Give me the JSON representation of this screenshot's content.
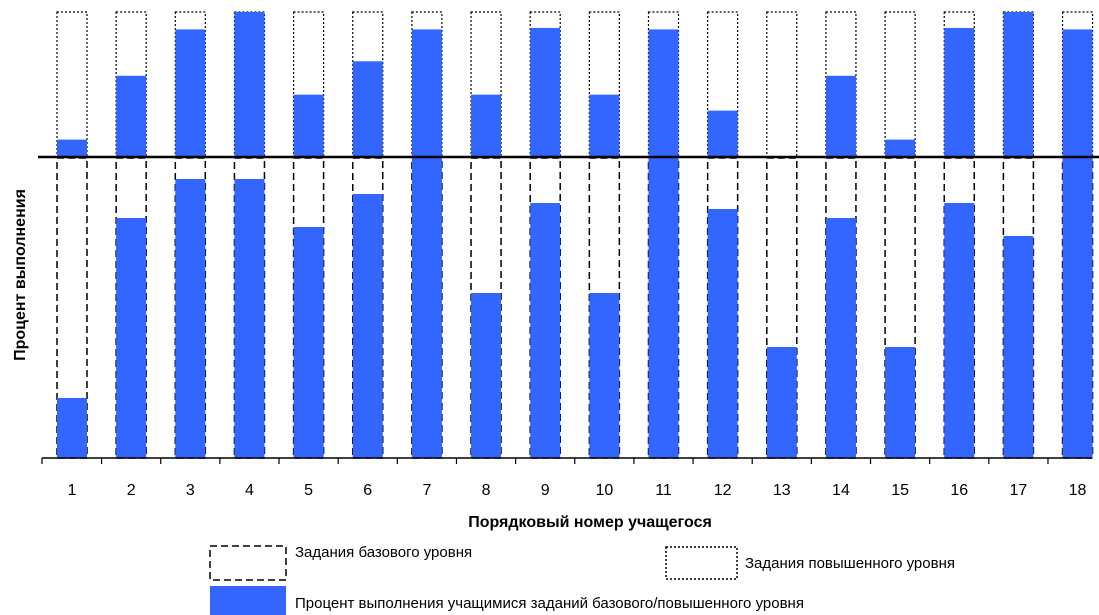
{
  "chart_data": {
    "type": "bar",
    "xlabel": "Порядковый номер учащегося",
    "ylabel": "Процент выполнения",
    "categories": [
      "1",
      "2",
      "3",
      "4",
      "5",
      "6",
      "7",
      "8",
      "9",
      "10",
      "11",
      "12",
      "13",
      "14",
      "15",
      "16",
      "17",
      "18"
    ],
    "ylim": [
      0,
      100
    ],
    "series": [
      {
        "name": "Задания базового уровня",
        "values": [
          20,
          80,
          93,
          93,
          77,
          88,
          100,
          55,
          85,
          55,
          100,
          83,
          37,
          80,
          37,
          85,
          74,
          100
        ]
      },
      {
        "name": "Задания повышенного уровня",
        "values": [
          12,
          56,
          88,
          100,
          43,
          66,
          88,
          43,
          89,
          43,
          88,
          32,
          0,
          56,
          12,
          89,
          100,
          88
        ]
      }
    ],
    "legend": {
      "placement": "bottom",
      "base_label": "Задания базового уровня",
      "advanced_label": "Задания повышенного уровня",
      "fill_label": "Процент выполнения учащимися  заданий базового/повышенного уровня"
    },
    "colors": {
      "bar_fill": "#3366ff",
      "outline": "#000000",
      "background": "#ffffff"
    }
  }
}
